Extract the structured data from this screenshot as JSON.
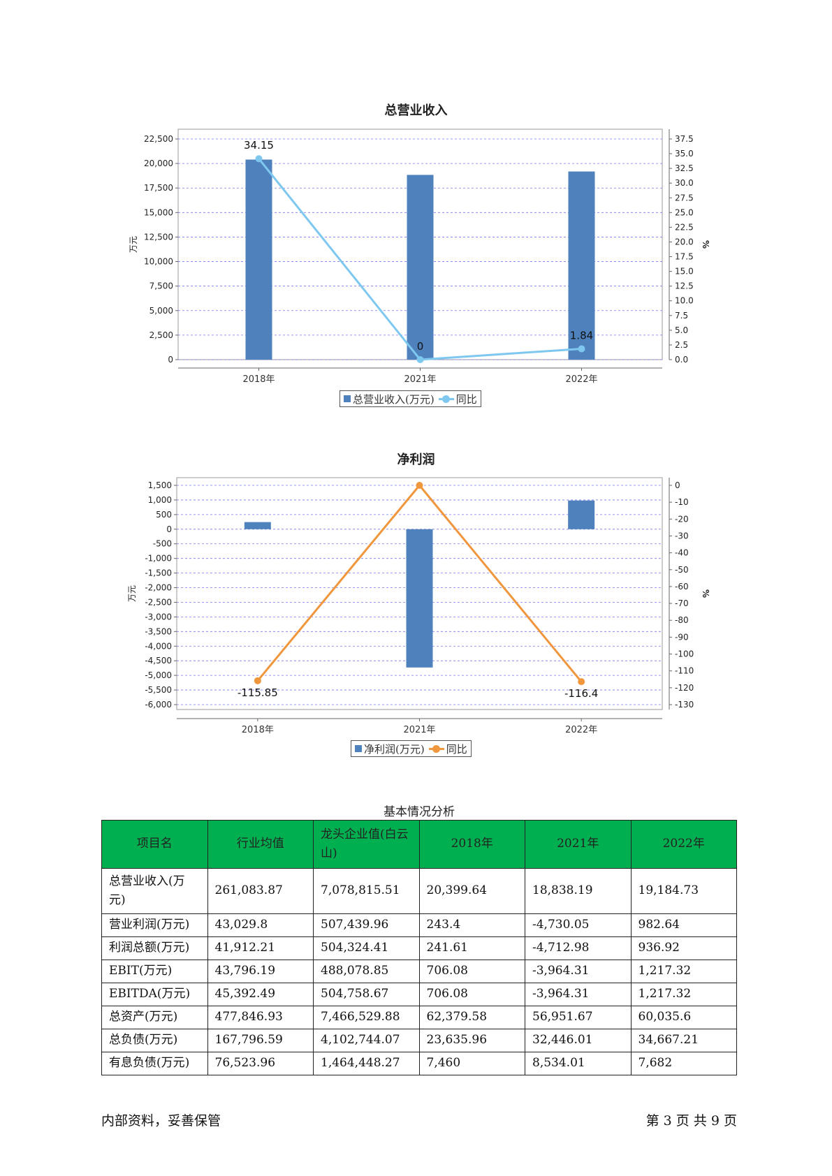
{
  "charts": {
    "revenue": {
      "title": "总营业收入",
      "left_unit": "万元",
      "right_unit": "%",
      "y_ticks": [
        "22,500",
        "20,000",
        "17,500",
        "15,000",
        "12,500",
        "10,000",
        "7,500",
        "5,000",
        "2,500",
        "0"
      ],
      "y2_ticks": [
        "37.5",
        "35.0",
        "32.5",
        "30.0",
        "27.5",
        "25.0",
        "22.5",
        "20.0",
        "17.5",
        "15.0",
        "12.5",
        "10.0",
        "7.5",
        "5.0",
        "2.5",
        "0.0"
      ],
      "categories": [
        "2018年",
        "2021年",
        "2022年"
      ],
      "point_labels": [
        "34.15",
        "0",
        "1.84"
      ],
      "legend_bar": "总营业收入(万元)",
      "legend_line": "同比"
    },
    "profit": {
      "title": "净利润",
      "left_unit": "万元",
      "right_unit": "%",
      "y_ticks": [
        "1,500",
        "1,000",
        "500",
        "0",
        "-500",
        "-1,000",
        "-1,500",
        "-2,000",
        "-2,500",
        "-3,000",
        "-3,500",
        "-4,000",
        "-4,500",
        "-5,000",
        "-5,500",
        "-6,000"
      ],
      "y2_ticks": [
        "0",
        "-10",
        "-20",
        "-30",
        "-40",
        "-50",
        "-60",
        "-70",
        "-80",
        "-90",
        "-100",
        "-110",
        "-120",
        "-130"
      ],
      "categories": [
        "2018年",
        "2021年",
        "2022年"
      ],
      "point_labels": [
        "-115.85",
        "",
        "-116.4"
      ],
      "legend_bar": "净利润(万元)",
      "legend_line": "同比"
    }
  },
  "chart_data": [
    {
      "type": "bar",
      "title": "总营业收入",
      "categories": [
        "2018年",
        "2021年",
        "2022年"
      ],
      "ylabel": "万元",
      "y2label": "%",
      "ylim": [
        0,
        22500
      ],
      "y2lim": [
        0,
        37.5
      ],
      "grid": true,
      "legend": "bottom",
      "series": [
        {
          "name": "总营业收入(万元)",
          "type": "bar",
          "axis": "left",
          "color": "#4f81bd",
          "values": [
            20399.64,
            18838.19,
            19184.73
          ]
        },
        {
          "name": "同比",
          "type": "line",
          "axis": "right",
          "color": "#7ec8f0",
          "values": [
            34.15,
            0,
            1.84
          ]
        }
      ]
    },
    {
      "type": "bar",
      "title": "净利润",
      "categories": [
        "2018年",
        "2021年",
        "2022年"
      ],
      "ylabel": "万元",
      "y2label": "%",
      "ylim": [
        -6000,
        1500
      ],
      "y2lim": [
        -130,
        0
      ],
      "grid": true,
      "legend": "bottom",
      "series": [
        {
          "name": "净利润(万元)",
          "type": "bar",
          "axis": "left",
          "color": "#4f81bd",
          "values": [
            243.4,
            -4730.05,
            982.64
          ]
        },
        {
          "name": "同比",
          "type": "line",
          "axis": "right",
          "color": "#f0963c",
          "values": [
            -115.85,
            0,
            -116.4
          ]
        }
      ]
    }
  ],
  "table": {
    "caption": "基本情况分析",
    "headers": [
      "项目名",
      "行业均值",
      "龙头企业值(白云山)",
      "2018年",
      "2021年",
      "2022年"
    ],
    "rows": [
      [
        "总营业收入(万元)",
        "261,083.87",
        "7,078,815.51",
        "20,399.64",
        "18,838.19",
        "19,184.73"
      ],
      [
        "营业利润(万元)",
        "43,029.8",
        "507,439.96",
        "243.4",
        "-4,730.05",
        "982.64"
      ],
      [
        "利润总额(万元)",
        "41,912.21",
        "504,324.41",
        "241.61",
        "-4,712.98",
        "936.92"
      ],
      [
        "EBIT(万元)",
        "43,796.19",
        "488,078.85",
        "706.08",
        "-3,964.31",
        "1,217.32"
      ],
      [
        "EBITDA(万元)",
        "45,392.49",
        "504,758.67",
        "706.08",
        "-3,964.31",
        "1,217.32"
      ],
      [
        "总资产(万元)",
        "477,846.93",
        "7,466,529.88",
        "62,379.58",
        "56,951.67",
        "60,035.6"
      ],
      [
        "总负债(万元)",
        "167,796.59",
        "4,102,744.07",
        "23,635.96",
        "32,446.01",
        "34,667.21"
      ],
      [
        "有息负债(万元)",
        "76,523.96",
        "1,464,448.27",
        "7,460",
        "8,534.01",
        "7,682"
      ]
    ]
  },
  "footer": {
    "left": "内部资料，妥善保管",
    "right": "第 3 页  共 9 页"
  }
}
